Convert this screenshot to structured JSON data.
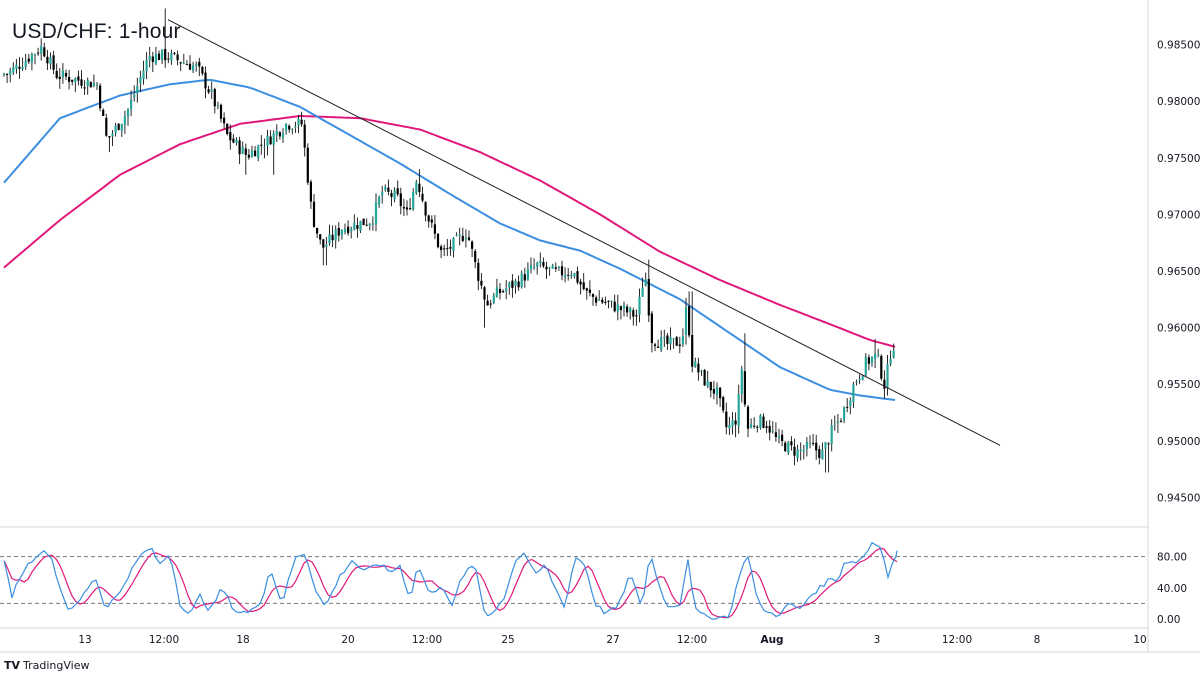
{
  "title": "USD/CHF: 1-hour",
  "brand": {
    "logo": "TV",
    "text": "TradingView"
  },
  "colors": {
    "bull": "#26a69a",
    "bear": "#000000",
    "candle_wick": "#111111",
    "ma_fast": "#3b8ee0",
    "ma_slow": "#e0187a",
    "trendline": "#1e1e1e",
    "stoch_k": "#3b8ee0",
    "stoch_d": "#e0187a",
    "grid_dash": "#777777",
    "axis_text": "#131722"
  },
  "chart_data": [
    {
      "type": "candlestick",
      "title": "USD/CHF: 1-hour",
      "ylim": [
        0.943,
        0.9885
      ],
      "y_ticks": [
        "0.98500",
        "0.98000",
        "0.97500",
        "0.97000",
        "0.96500",
        "0.96000",
        "0.95500",
        "0.95000",
        "0.94500"
      ],
      "x_ticks": [
        "13",
        "12:00",
        "18",
        "20",
        "12:00",
        "25",
        "27",
        "12:00",
        "Aug",
        "3",
        "12:00",
        "8",
        "10"
      ],
      "price_anchors": [
        [
          0,
          0.9823
        ],
        [
          12,
          0.9825
        ],
        [
          45,
          0.9848
        ],
        [
          60,
          0.9823
        ],
        [
          100,
          0.9815
        ],
        [
          110,
          0.9765
        ],
        [
          130,
          0.979
        ],
        [
          152,
          0.984
        ],
        [
          170,
          0.984
        ],
        [
          200,
          0.983
        ],
        [
          215,
          0.9805
        ],
        [
          230,
          0.977
        ],
        [
          250,
          0.9752
        ],
        [
          270,
          0.9765
        ],
        [
          290,
          0.978
        ],
        [
          305,
          0.978
        ],
        [
          315,
          0.97
        ],
        [
          325,
          0.967
        ],
        [
          345,
          0.9688
        ],
        [
          375,
          0.9695
        ],
        [
          385,
          0.972
        ],
        [
          400,
          0.9715
        ],
        [
          410,
          0.97
        ],
        [
          420,
          0.9732
        ],
        [
          430,
          0.97
        ],
        [
          445,
          0.9665
        ],
        [
          455,
          0.9672
        ],
        [
          470,
          0.9685
        ],
        [
          480,
          0.965
        ],
        [
          490,
          0.962
        ],
        [
          500,
          0.963
        ],
        [
          520,
          0.964
        ],
        [
          540,
          0.9655
        ],
        [
          560,
          0.9648
        ],
        [
          575,
          0.965
        ],
        [
          590,
          0.963
        ],
        [
          600,
          0.9625
        ],
        [
          620,
          0.9618
        ],
        [
          640,
          0.961
        ],
        [
          648,
          0.965
        ],
        [
          655,
          0.959
        ],
        [
          670,
          0.9585
        ],
        [
          685,
          0.9588
        ],
        [
          690,
          0.962
        ],
        [
          695,
          0.957
        ],
        [
          710,
          0.955
        ],
        [
          720,
          0.9542
        ],
        [
          730,
          0.951
        ],
        [
          740,
          0.952
        ],
        [
          745,
          0.9565
        ],
        [
          750,
          0.951
        ],
        [
          760,
          0.9518
        ],
        [
          770,
          0.9515
        ],
        [
          780,
          0.95
        ],
        [
          800,
          0.949
        ],
        [
          815,
          0.9495
        ],
        [
          825,
          0.9488
        ],
        [
          835,
          0.9508
        ],
        [
          845,
          0.9522
        ],
        [
          858,
          0.9552
        ],
        [
          870,
          0.957
        ],
        [
          880,
          0.9575
        ],
        [
          888,
          0.9548
        ],
        [
          895,
          0.9585
        ]
      ],
      "price_spikes": [
        [
          165,
          0.9882
        ],
        [
          110,
          0.9755
        ],
        [
          245,
          0.9735
        ],
        [
          273,
          0.9735
        ],
        [
          325,
          0.9655
        ],
        [
          419,
          0.974
        ],
        [
          485,
          0.96
        ],
        [
          648,
          0.966
        ],
        [
          691,
          0.9632
        ],
        [
          745,
          0.9595
        ],
        [
          735,
          0.9503
        ],
        [
          827,
          0.9472
        ],
        [
          875,
          0.959
        ],
        [
          888,
          0.954
        ]
      ],
      "ma_fast": [
        [
          4,
          0.9728
        ],
        [
          60,
          0.9785
        ],
        [
          120,
          0.9805
        ],
        [
          170,
          0.9815
        ],
        [
          210,
          0.9819
        ],
        [
          250,
          0.9812
        ],
        [
          300,
          0.9795
        ],
        [
          350,
          0.977
        ],
        [
          400,
          0.9745
        ],
        [
          450,
          0.9718
        ],
        [
          500,
          0.9692
        ],
        [
          540,
          0.9677
        ],
        [
          580,
          0.9668
        ],
        [
          620,
          0.9652
        ],
        [
          680,
          0.9625
        ],
        [
          730,
          0.9595
        ],
        [
          780,
          0.9565
        ],
        [
          830,
          0.9545
        ],
        [
          860,
          0.954
        ],
        [
          895,
          0.9536
        ]
      ],
      "ma_slow": [
        [
          4,
          0.9653
        ],
        [
          60,
          0.9695
        ],
        [
          120,
          0.9735
        ],
        [
          180,
          0.9762
        ],
        [
          240,
          0.978
        ],
        [
          300,
          0.9787
        ],
        [
          360,
          0.9785
        ],
        [
          420,
          0.9775
        ],
        [
          480,
          0.9755
        ],
        [
          540,
          0.973
        ],
        [
          600,
          0.97
        ],
        [
          660,
          0.9667
        ],
        [
          720,
          0.9642
        ],
        [
          780,
          0.962
        ],
        [
          830,
          0.9603
        ],
        [
          870,
          0.9589
        ],
        [
          895,
          0.9583
        ]
      ],
      "trendline": [
        [
          168,
          0.9872
        ],
        [
          1000,
          0.9496
        ]
      ]
    },
    {
      "type": "line",
      "name": "stochastic",
      "ylim": [
        0,
        100
      ],
      "y_ticks": [
        "80.00",
        "40.00",
        "0.00"
      ],
      "levels": [
        80,
        20
      ],
      "k_anchors": [
        [
          4,
          72
        ],
        [
          12,
          30
        ],
        [
          22,
          60
        ],
        [
          38,
          85
        ],
        [
          50,
          85
        ],
        [
          60,
          40
        ],
        [
          70,
          8
        ],
        [
          82,
          28
        ],
        [
          95,
          55
        ],
        [
          105,
          15
        ],
        [
          118,
          30
        ],
        [
          128,
          55
        ],
        [
          140,
          80
        ],
        [
          150,
          92
        ],
        [
          160,
          70
        ],
        [
          170,
          85
        ],
        [
          180,
          20
        ],
        [
          190,
          5
        ],
        [
          200,
          30
        ],
        [
          210,
          10
        ],
        [
          222,
          40
        ],
        [
          235,
          10
        ],
        [
          250,
          8
        ],
        [
          262,
          25
        ],
        [
          270,
          65
        ],
        [
          282,
          20
        ],
        [
          295,
          78
        ],
        [
          305,
          85
        ],
        [
          315,
          40
        ],
        [
          325,
          15
        ],
        [
          340,
          55
        ],
        [
          352,
          75
        ],
        [
          365,
          60
        ],
        [
          378,
          72
        ],
        [
          390,
          60
        ],
        [
          400,
          68
        ],
        [
          410,
          25
        ],
        [
          418,
          70
        ],
        [
          430,
          30
        ],
        [
          442,
          45
        ],
        [
          452,
          15
        ],
        [
          462,
          55
        ],
        [
          475,
          70
        ],
        [
          485,
          5
        ],
        [
          495,
          10
        ],
        [
          505,
          30
        ],
        [
          515,
          75
        ],
        [
          525,
          85
        ],
        [
          535,
          55
        ],
        [
          545,
          70
        ],
        [
          555,
          40
        ],
        [
          565,
          15
        ],
        [
          575,
          80
        ],
        [
          585,
          70
        ],
        [
          595,
          20
        ],
        [
          605,
          8
        ],
        [
          618,
          15
        ],
        [
          630,
          58
        ],
        [
          642,
          15
        ],
        [
          650,
          85
        ],
        [
          660,
          40
        ],
        [
          668,
          15
        ],
        [
          680,
          20
        ],
        [
          688,
          78
        ],
        [
          695,
          12
        ],
        [
          705,
          3
        ],
        [
          720,
          2
        ],
        [
          730,
          5
        ],
        [
          740,
          60
        ],
        [
          748,
          82
        ],
        [
          758,
          20
        ],
        [
          768,
          8
        ],
        [
          778,
          5
        ],
        [
          790,
          20
        ],
        [
          800,
          12
        ],
        [
          810,
          30
        ],
        [
          820,
          40
        ],
        [
          830,
          52
        ],
        [
          838,
          50
        ],
        [
          845,
          75
        ],
        [
          855,
          72
        ],
        [
          865,
          82
        ],
        [
          872,
          98
        ],
        [
          880,
          95
        ],
        [
          888,
          55
        ],
        [
          897,
          85
        ]
      ],
      "d_lag": 4
    }
  ],
  "axis": {
    "price_ticks": [
      {
        "label": "0.98500",
        "value": 0.985
      },
      {
        "label": "0.98000",
        "value": 0.98
      },
      {
        "label": "0.97500",
        "value": 0.975
      },
      {
        "label": "0.97000",
        "value": 0.97
      },
      {
        "label": "0.96500",
        "value": 0.965
      },
      {
        "label": "0.96000",
        "value": 0.96
      },
      {
        "label": "0.95500",
        "value": 0.955
      },
      {
        "label": "0.95000",
        "value": 0.95
      },
      {
        "label": "0.94500",
        "value": 0.945
      }
    ],
    "osc_ticks": [
      {
        "label": "80.00",
        "value": 80
      },
      {
        "label": "40.00",
        "value": 40
      },
      {
        "label": "0.00",
        "value": 0
      }
    ],
    "time_ticks": [
      {
        "label": "13",
        "bold": false
      },
      {
        "label": "12:00",
        "bold": false
      },
      {
        "label": "18",
        "bold": false
      },
      {
        "label": "20",
        "bold": false
      },
      {
        "label": "12:00",
        "bold": false
      },
      {
        "label": "25",
        "bold": false
      },
      {
        "label": "27",
        "bold": false
      },
      {
        "label": "12:00",
        "bold": false
      },
      {
        "label": "Aug",
        "bold": true
      },
      {
        "label": "3",
        "bold": false
      },
      {
        "label": "12:00",
        "bold": false
      },
      {
        "label": "8",
        "bold": false
      },
      {
        "label": "10",
        "bold": false
      }
    ]
  }
}
